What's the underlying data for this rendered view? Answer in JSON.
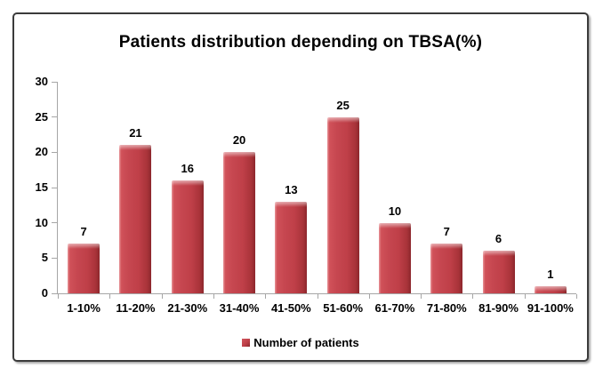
{
  "chart_data": {
    "type": "bar",
    "title": "Patients distribution depending on TBSA(%)",
    "categories": [
      "1-10%",
      "11-20%",
      "21-30%",
      "31-40%",
      "41-50%",
      "51-60%",
      "61-70%",
      "71-80%",
      "81-90%",
      "91-100%"
    ],
    "series": [
      {
        "name": "Number of patients",
        "values": [
          7,
          21,
          16,
          20,
          13,
          25,
          10,
          7,
          6,
          1
        ]
      }
    ],
    "xlabel": "",
    "ylabel": "",
    "ylim": [
      0,
      30
    ],
    "yticks": [
      0,
      5,
      10,
      15,
      20,
      25,
      30
    ],
    "grid": false,
    "data_labels": true,
    "legend_position": "bottom",
    "colors": {
      "bar_main": "#bf3f48",
      "bar_dark_edge": "#8c272c",
      "bar_highlight": "#e8969a",
      "axis": "#a6a6a6",
      "text": "#000000",
      "frame_border": "#3b3b3b",
      "background": "#ffffff"
    }
  }
}
